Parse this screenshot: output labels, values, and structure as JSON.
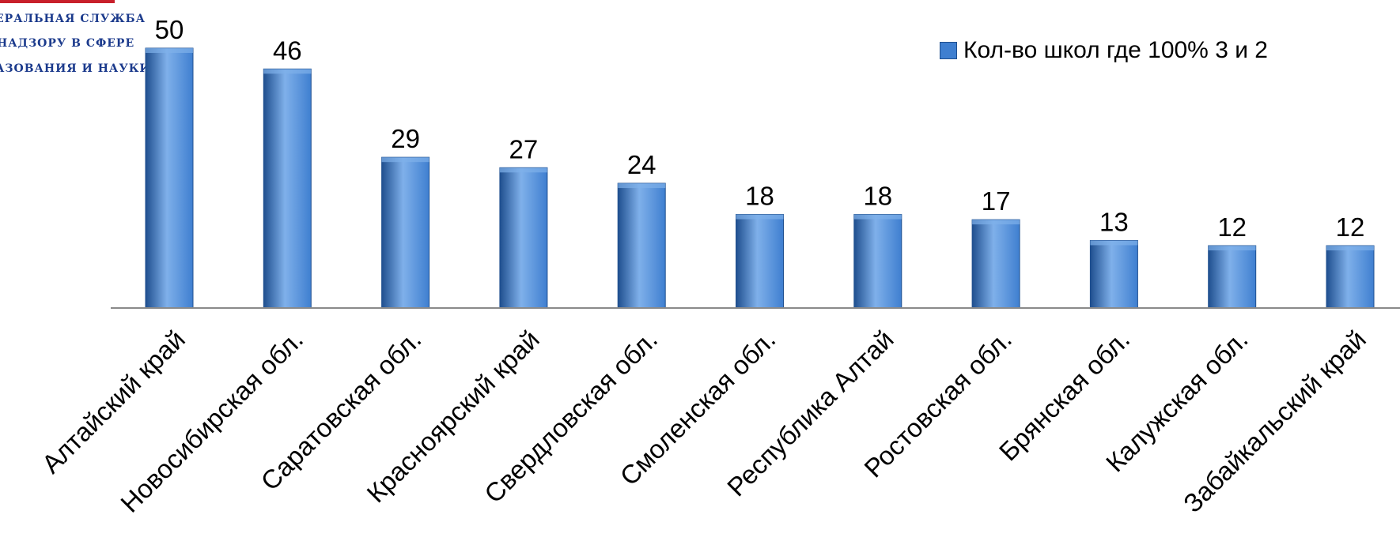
{
  "logo": {
    "line1": "ЕРАЛЬНАЯ СЛУЖБА",
    "line2": "НАДЗОРУ В СФЕРЕ",
    "line3": "АЗОВАНИЯ И НАУКИ",
    "brand_color": "#c8202b",
    "text_color": "#1b3a8c"
  },
  "legend": {
    "label": "Кол-во школ где 100%  3 и 2",
    "position": "top-right"
  },
  "colors": {
    "bar": "#3f7fd0",
    "bar_highlight": "#7fb0ea",
    "bar_shadow": "#1f4f8f",
    "axis": "#8a8a8a"
  },
  "chart_data": {
    "type": "bar",
    "categories": [
      "Алтайский край",
      "Новосибирская обл.",
      "Саратовская обл.",
      "Красноярский край",
      "Свердловская обл.",
      "Смоленская обл.",
      "Республика Алтай",
      "Ростовская обл.",
      "Брянская обл.",
      "Калужская обл.",
      "Забайкальский край"
    ],
    "series": [
      {
        "name": "Кол-во школ где 100%  3 и 2",
        "values": [
          50,
          46,
          29,
          27,
          24,
          18,
          18,
          17,
          13,
          12,
          12
        ]
      }
    ],
    "ylim": [
      0,
      50
    ],
    "grid": false,
    "data_labels": true
  }
}
